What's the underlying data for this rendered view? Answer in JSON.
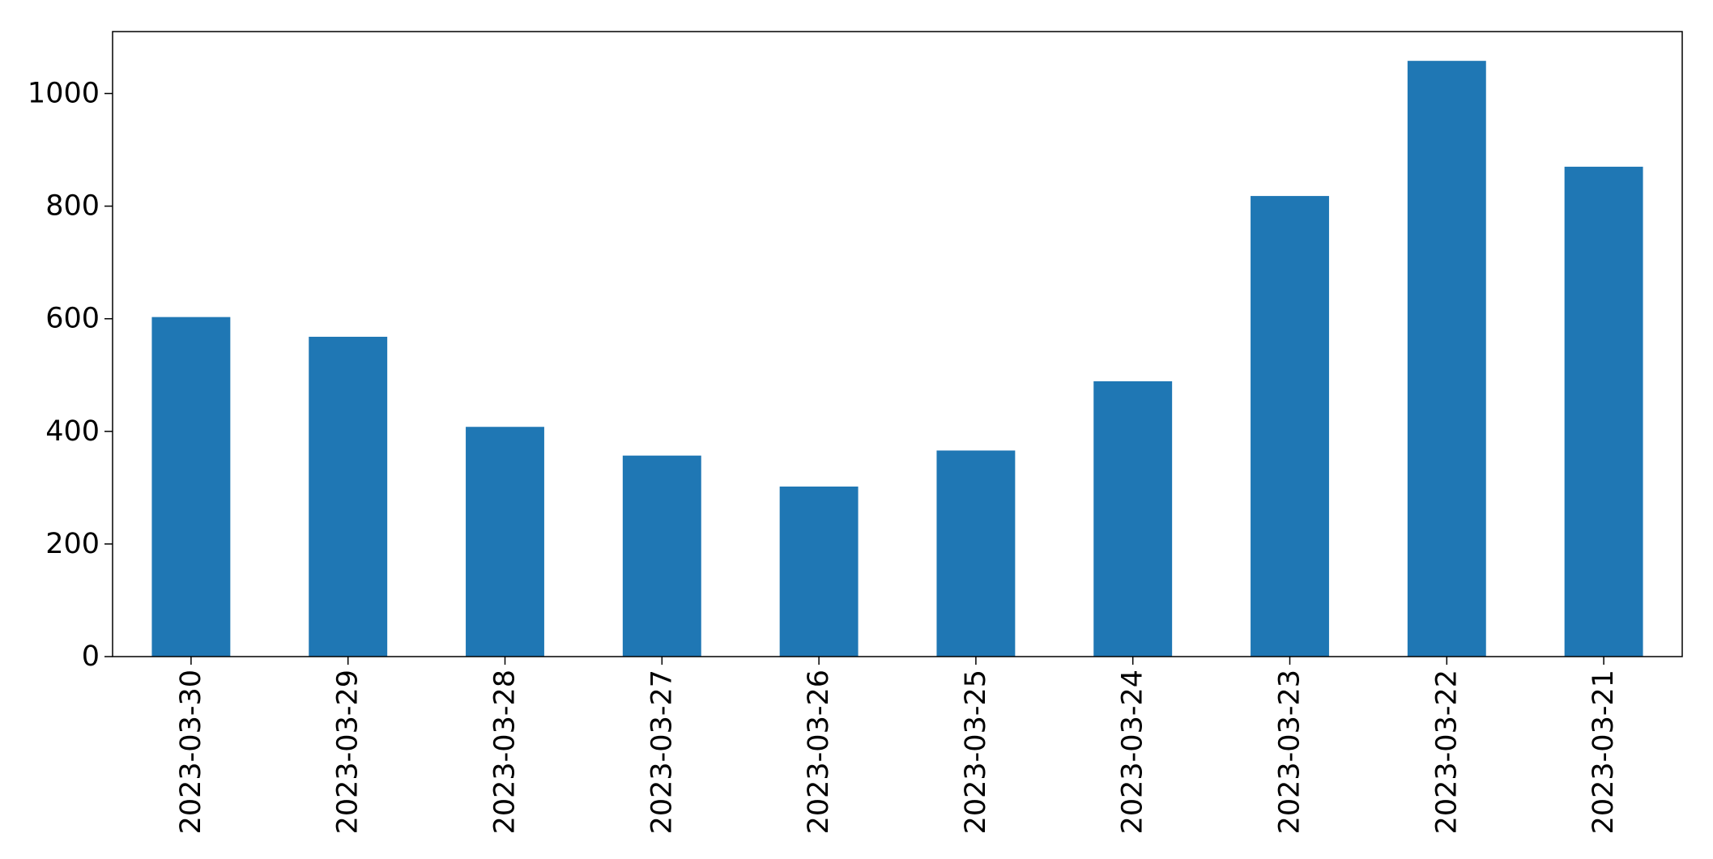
{
  "chart_data": {
    "type": "bar",
    "title": "",
    "xlabel": "",
    "ylabel": "",
    "categories": [
      "2023-03-30",
      "2023-03-29",
      "2023-03-28",
      "2023-03-27",
      "2023-03-26",
      "2023-03-25",
      "2023-03-24",
      "2023-03-23",
      "2023-03-22",
      "2023-03-21"
    ],
    "values": [
      603,
      568,
      408,
      357,
      302,
      366,
      489,
      818,
      1058,
      870
    ],
    "ylim": [
      0,
      1110
    ],
    "yticks": [
      0,
      200,
      400,
      600,
      800,
      1000
    ],
    "grid": false,
    "legend": "none",
    "bar_color": "#1f77b4"
  }
}
